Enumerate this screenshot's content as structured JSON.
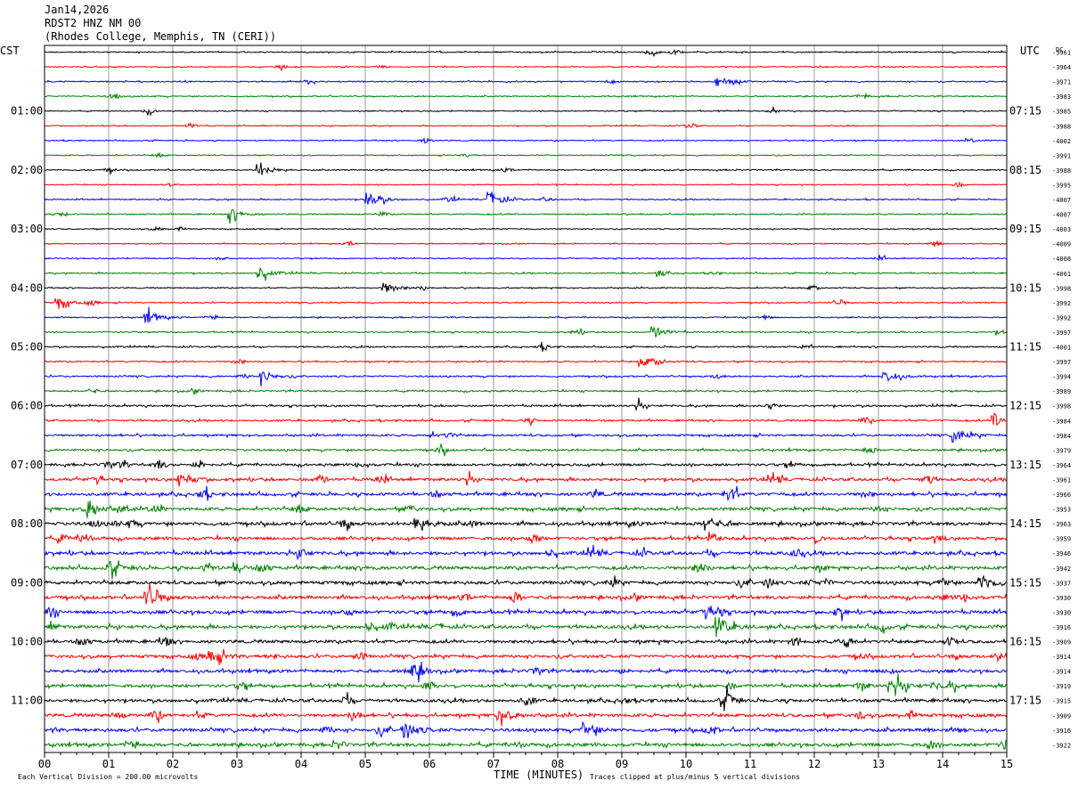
{
  "header": {
    "date": "Jan14,2026",
    "station": "RDST2 HNZ NM 00",
    "location": "(Rhodes College, Memphis, TN (CERI))"
  },
  "chart_data": {
    "type": "line",
    "title": "",
    "xlabel": "TIME (MINUTES)",
    "ylabel": "",
    "x_ticks": [
      "00",
      "01",
      "02",
      "03",
      "04",
      "05",
      "06",
      "07",
      "08",
      "09",
      "10",
      "11",
      "12",
      "13",
      "14",
      "15"
    ],
    "xlim": [
      0,
      15
    ],
    "left_axis_label": "CST",
    "right_axis_label": "UTC",
    "dc_label": "DC",
    "cst_hours": [
      "01:00",
      "02:00",
      "03:00",
      "04:00",
      "05:00",
      "06:00",
      "07:00",
      "08:00",
      "09:00",
      "10:00",
      "11:00"
    ],
    "utc_hours": [
      "07:15",
      "08:15",
      "09:15",
      "10:15",
      "11:15",
      "12:15",
      "13:15",
      "14:15",
      "15:15",
      "16:15",
      "17:15"
    ],
    "hour_row_index": [
      4,
      8,
      12,
      16,
      20,
      24,
      28,
      32,
      36,
      40,
      44
    ],
    "trace_colors": [
      "#000000",
      "#ff0000",
      "#0000ff",
      "#008000"
    ],
    "dc_offsets": [
      -3961,
      -3964,
      -3971,
      -3983,
      -3985,
      -3988,
      -4002,
      -3991,
      -3988,
      -3995,
      -4007,
      -4007,
      -4003,
      -4009,
      -4008,
      -4001,
      -3998,
      -3992,
      -3992,
      -3997,
      -4001,
      -3997,
      -3994,
      -3989,
      -3998,
      -3984,
      -3984,
      -3979,
      -3964,
      -3961,
      -3966,
      -3953,
      -3963,
      -3959,
      -3946,
      -3942,
      -3937,
      -3930,
      -3930,
      -3916,
      -3909,
      -3914,
      -3914,
      -3919,
      -3915,
      -3909,
      -3916,
      -3922
    ],
    "activity_levels": [
      0.6,
      0.5,
      0.6,
      0.6,
      0.5,
      0.5,
      0.5,
      0.5,
      0.6,
      0.5,
      0.6,
      0.6,
      0.5,
      0.5,
      0.5,
      0.6,
      0.6,
      0.6,
      0.6,
      0.6,
      0.7,
      0.7,
      0.8,
      0.8,
      0.9,
      0.9,
      1.0,
      1.0,
      1.2,
      1.4,
      1.5,
      1.5,
      1.6,
      1.5,
      1.6,
      1.6,
      1.6,
      1.6,
      1.6,
      1.6,
      1.5,
      1.5,
      1.5,
      1.5,
      1.5,
      1.5,
      1.6,
      1.6
    ],
    "events": [
      {
        "row": 2,
        "x": 10.5,
        "amp": 6
      },
      {
        "row": 8,
        "x": 3.35,
        "amp": 7
      },
      {
        "row": 10,
        "x": 5.05,
        "amp": 9
      },
      {
        "row": 10,
        "x": 6.95,
        "amp": 8
      },
      {
        "row": 11,
        "x": 2.9,
        "amp": 6
      },
      {
        "row": 15,
        "x": 3.35,
        "amp": 6
      },
      {
        "row": 16,
        "x": 5.3,
        "amp": 6
      },
      {
        "row": 17,
        "x": 0.2,
        "amp": 6
      },
      {
        "row": 18,
        "x": 1.6,
        "amp": 6
      },
      {
        "row": 19,
        "x": 9.5,
        "amp": 6
      },
      {
        "row": 21,
        "x": 9.3,
        "amp": 6
      },
      {
        "row": 22,
        "x": 3.4,
        "amp": 6
      },
      {
        "row": 22,
        "x": 13.1,
        "amp": 6
      },
      {
        "row": 25,
        "x": 14.8,
        "amp": 8
      },
      {
        "row": 26,
        "x": 14.2,
        "amp": 7
      },
      {
        "row": 29,
        "x": 2.1,
        "amp": 7
      },
      {
        "row": 31,
        "x": 0.7,
        "amp": 6
      },
      {
        "row": 32,
        "x": 5.8,
        "amp": 8
      },
      {
        "row": 32,
        "x": 10.3,
        "amp": 8
      },
      {
        "row": 35,
        "x": 1.0,
        "amp": 7
      },
      {
        "row": 36,
        "x": 14.6,
        "amp": 8
      },
      {
        "row": 37,
        "x": 1.6,
        "amp": 7
      },
      {
        "row": 39,
        "x": 10.5,
        "amp": 10
      },
      {
        "row": 41,
        "x": 2.6,
        "amp": 7
      },
      {
        "row": 43,
        "x": 13.2,
        "amp": 9
      },
      {
        "row": 45,
        "x": 7.1,
        "amp": 7
      },
      {
        "row": 46,
        "x": 5.6,
        "amp": 9
      },
      {
        "row": 46,
        "x": 8.4,
        "amp": 8
      }
    ]
  },
  "footer": {
    "scale_note": "Each Vertical Division =  200.00 microvolts",
    "clip_note": "Traces clipped at plus/minus 5 vertical divisions"
  }
}
